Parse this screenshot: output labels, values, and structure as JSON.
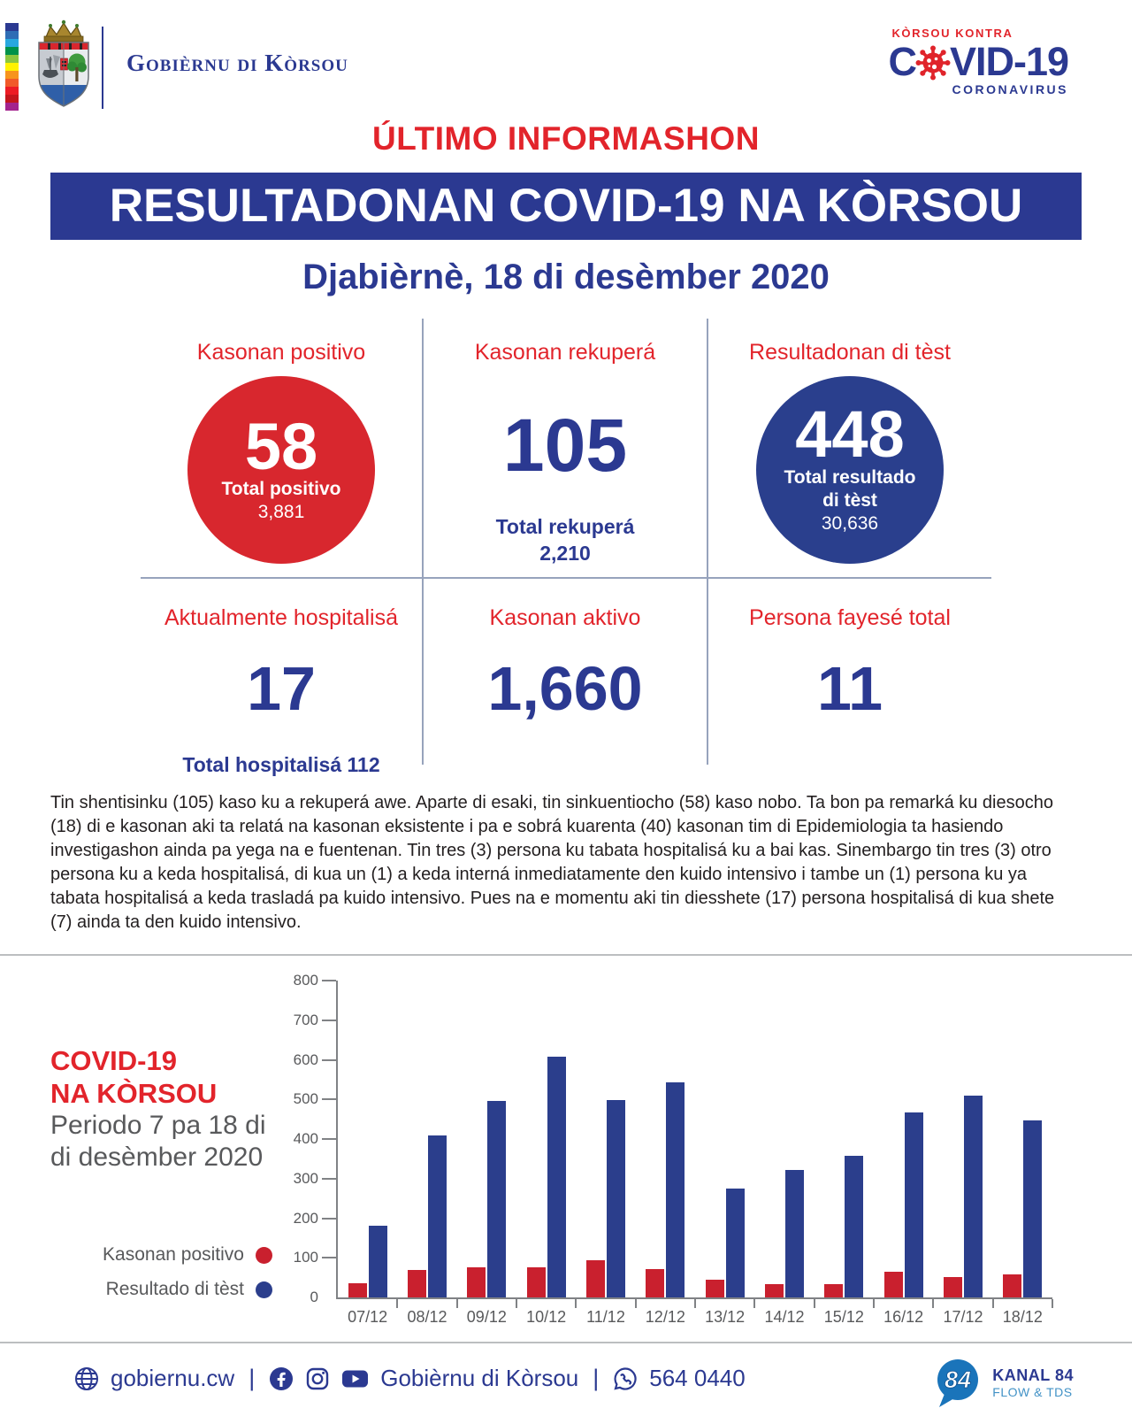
{
  "brand": {
    "org_name": "Gobièrnu di Kòrsou",
    "covid_logo": {
      "kicker": "KÒRSOU KONTRA",
      "main_prefix": "C",
      "main_suffix": "VID-19",
      "subtitle": "CORONAVIRUS"
    }
  },
  "title": "ÚLTIMO INFORMASHON",
  "banner": "RESULTADONAN COVID-19 NA KÒRSOU",
  "date_line": "Djabièrnè, 18 di desèmber 2020",
  "stats": {
    "positivo": {
      "label": "Kasonan positivo",
      "value": "58",
      "total_label": "Total positivo",
      "total_value": "3,881"
    },
    "rekupera": {
      "label": "Kasonan rekuperá",
      "value": "105",
      "total_label": "Total rekuperá",
      "total_value": "2,210"
    },
    "test": {
      "label": "Resultadonan di tèst",
      "value": "448",
      "total_label_line1": "Total resultado",
      "total_label_line2": "di tèst",
      "total_value": "30,636"
    },
    "hospital": {
      "label": "Aktualmente hospitalisá",
      "value": "17",
      "total_label": "Total hospitalisá 112"
    },
    "aktivo": {
      "label": "Kasonan aktivo",
      "value": "1,660"
    },
    "fayese": {
      "label": "Persona fayesé total",
      "value": "11"
    }
  },
  "paragraph": "Tin shentisinku (105) kaso ku a rekuperá awe. Aparte di esaki, tin sinkuentiocho (58) kaso nobo. Ta bon pa remarká ku diesocho (18) di e kasonan aki ta relatá na kasonan eksistente i pa e sobrá kuarenta (40) kasonan tim di Epidemiologia ta hasiendo investigashon ainda pa yega na e fuentenan. Tin tres (3) persona ku tabata hospitalisá ku a bai kas. Sinembargo tin tres (3) otro persona ku a keda hospitalisá, di kua un (1) a keda interná inmediatamente den kuido intensivo i tambe un (1) persona ku ya tabata hospitalisá a keda trasladá pa kuido intensivo. Pues na e momentu aki tin diesshete (17) persona hospitalisá di kua shete (7) ainda ta den kuido intensivo.",
  "chart_section": {
    "title_line1": "COVID-19",
    "title_line2": "NA KÒRSOU",
    "subtitle_line1": "Periodo 7 pa 18 di",
    "subtitle_line2": "di desèmber 2020"
  },
  "chart_data": {
    "type": "bar",
    "title": "COVID-19 na Kòrsou — Periodo 7 pa 18 di desèmber 2020",
    "categories": [
      "07/12",
      "08/12",
      "09/12",
      "10/12",
      "11/12",
      "12/12",
      "13/12",
      "14/12",
      "15/12",
      "16/12",
      "17/12",
      "18/12"
    ],
    "series": [
      {
        "name": "Kasonan positivo",
        "color": "#c9202e",
        "values": [
          35,
          70,
          75,
          75,
          95,
          72,
          45,
          33,
          33,
          64,
          52,
          58
        ]
      },
      {
        "name": "Resultado di tèst",
        "color": "#2b3e8c",
        "values": [
          180,
          408,
          497,
          608,
          498,
          544,
          275,
          322,
          358,
          467,
          510,
          448
        ]
      }
    ],
    "xlabel": "",
    "ylabel": "",
    "ylim": [
      0,
      800
    ],
    "ytick_step": 100,
    "grid": false,
    "legend_position": "left"
  },
  "footer": {
    "website": "gobiernu.cw",
    "separator": "|",
    "social_name": "Gobièrnu di Kòrsou",
    "phone": "564 0440",
    "kanal": {
      "number": "84",
      "line1": "KANAL 84",
      "line2": "FLOW & TDS"
    }
  },
  "colors": {
    "accent_red": "#e2242b",
    "brand_blue": "#2b3991",
    "chart_text": "#58595b",
    "divider": "#97a3bc"
  }
}
